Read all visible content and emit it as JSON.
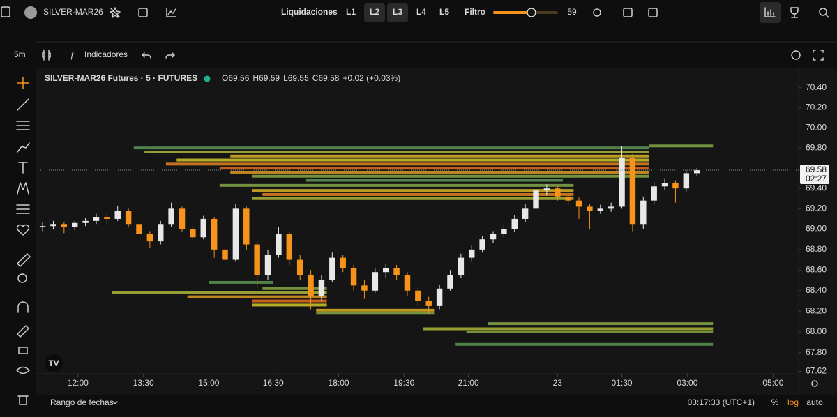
{
  "top_bar": {
    "symbol": "SILVER-MAR26",
    "liquidations": "Liquidaciones",
    "levels": [
      "L1",
      "L2",
      "L3",
      "L4",
      "L5"
    ],
    "filter": "Filtro",
    "filter_value": 59
  },
  "toolbar": {
    "interval": "5m",
    "indicators": "Indicadores"
  },
  "chart_data": {
    "type": "candlestick",
    "title": "SILVER-MAR26 Futures · 5 · FUTURES",
    "legend_values": [
      "O69.56",
      "H69.59",
      "L69.55",
      "C69.58",
      "+0.02 (+0.03%)"
    ],
    "up_color": "#e8e8e8",
    "down_color": "#f7931a",
    "log_scale": true,
    "ylim": [
      67.57,
      70.51
    ],
    "yticks": [
      {
        "value": 70.4,
        "label": "70.40"
      },
      {
        "value": 70.2,
        "label": "70.20"
      },
      {
        "value": 70,
        "label": "70.00"
      },
      {
        "value": 69.8,
        "label": "69.80"
      },
      {
        "value": 69.4,
        "label": "69.40"
      },
      {
        "value": 69.2,
        "label": "69.20"
      },
      {
        "value": 69,
        "label": "69.00"
      },
      {
        "value": 68.8,
        "label": "68.80"
      },
      {
        "value": 68.6,
        "label": "68.60"
      },
      {
        "value": 68.4,
        "label": "68.40"
      },
      {
        "value": 68.2,
        "label": "68.20"
      },
      {
        "value": 68,
        "label": "68.00"
      },
      {
        "value": 67.8,
        "label": "67.80"
      },
      67.62
    ],
    "xlim": [
      -0.2,
      69.7
    ],
    "xticks": [
      {
        "value": 3.3,
        "label": "12:00"
      },
      {
        "value": 9.4,
        "label": "13:30"
      },
      {
        "value": 15.5,
        "label": "15:00"
      },
      {
        "value": 21.5,
        "label": "16:30"
      },
      {
        "value": 27.6,
        "label": "18:00"
      },
      {
        "value": 33.7,
        "label": "19:30"
      },
      {
        "value": 39.7,
        "label": "21:00"
      },
      {
        "value": 48.0,
        "label": "23"
      },
      {
        "value": 54.0,
        "label": "01:30"
      },
      {
        "value": 60.1,
        "label": "03:00"
      },
      {
        "value": 68.1,
        "label": "05:00"
      }
    ],
    "last_price": 69.58,
    "countdown": "02:27",
    "candles": [
      [
        69.02,
        69.07,
        68.98,
        69.03
      ],
      [
        69.03,
        69.08,
        69.0,
        69.05
      ],
      [
        69.05,
        69.07,
        68.96,
        69.02
      ],
      [
        69.02,
        69.08,
        68.99,
        69.06
      ],
      [
        69.06,
        69.11,
        69.03,
        69.08
      ],
      [
        69.08,
        69.15,
        69.05,
        69.12
      ],
      [
        69.12,
        69.15,
        69.05,
        69.1
      ],
      [
        69.1,
        69.23,
        69.08,
        69.18
      ],
      [
        69.18,
        69.2,
        69.02,
        69.05
      ],
      [
        69.05,
        69.08,
        68.92,
        68.95
      ],
      [
        68.95,
        68.98,
        68.82,
        68.88
      ],
      [
        68.88,
        69.08,
        68.85,
        69.05
      ],
      [
        69.05,
        69.26,
        69.02,
        69.2
      ],
      [
        69.2,
        69.22,
        68.97,
        69.0
      ],
      [
        69.0,
        69.03,
        68.88,
        68.92
      ],
      [
        68.92,
        69.13,
        68.9,
        69.1
      ],
      [
        69.1,
        69.12,
        68.72,
        68.8
      ],
      [
        68.8,
        68.85,
        68.62,
        68.7
      ],
      [
        68.7,
        69.25,
        68.68,
        69.2
      ],
      [
        69.2,
        69.22,
        68.8,
        68.85
      ],
      [
        68.85,
        68.88,
        68.42,
        68.55
      ],
      [
        68.55,
        68.8,
        68.5,
        68.75
      ],
      [
        68.75,
        69.02,
        68.72,
        68.95
      ],
      [
        68.95,
        68.98,
        68.65,
        68.7
      ],
      [
        68.7,
        68.75,
        68.5,
        68.55
      ],
      [
        68.55,
        68.6,
        68.22,
        68.35
      ],
      [
        68.35,
        68.55,
        68.3,
        68.5
      ],
      [
        68.5,
        68.77,
        68.48,
        68.72
      ],
      [
        68.72,
        68.75,
        68.58,
        68.62
      ],
      [
        68.62,
        68.65,
        68.4,
        68.45
      ],
      [
        68.45,
        68.5,
        68.32,
        68.4
      ],
      [
        68.4,
        68.62,
        68.38,
        68.58
      ],
      [
        68.58,
        68.66,
        68.52,
        68.62
      ],
      [
        68.62,
        68.65,
        68.5,
        68.55
      ],
      [
        68.55,
        68.58,
        68.35,
        68.4
      ],
      [
        68.4,
        68.44,
        68.25,
        68.3
      ],
      [
        68.3,
        68.34,
        68.17,
        68.25
      ],
      [
        68.25,
        68.46,
        68.22,
        68.42
      ],
      [
        68.42,
        68.6,
        68.4,
        68.55
      ],
      [
        68.55,
        68.76,
        68.52,
        68.72
      ],
      [
        68.72,
        68.84,
        68.68,
        68.8
      ],
      [
        68.8,
        68.93,
        68.77,
        68.9
      ],
      [
        68.9,
        68.98,
        68.86,
        68.95
      ],
      [
        68.95,
        69.04,
        68.92,
        69.0
      ],
      [
        69.0,
        69.14,
        68.97,
        69.1
      ],
      [
        69.1,
        69.25,
        69.07,
        69.2
      ],
      [
        69.2,
        69.45,
        69.17,
        69.38
      ],
      [
        69.38,
        69.44,
        69.33,
        69.4
      ],
      [
        69.4,
        69.42,
        69.28,
        69.32
      ],
      [
        69.32,
        69.35,
        69.24,
        69.28
      ],
      [
        69.28,
        69.31,
        69.1,
        69.22
      ],
      [
        69.22,
        69.25,
        69.0,
        69.18
      ],
      [
        69.18,
        69.24,
        69.15,
        69.2
      ],
      [
        69.2,
        69.26,
        69.17,
        69.22
      ],
      [
        69.22,
        69.82,
        69.2,
        69.7
      ],
      [
        69.7,
        69.74,
        68.98,
        69.05
      ],
      [
        69.05,
        69.32,
        69.0,
        69.28
      ],
      [
        69.28,
        69.46,
        69.24,
        69.42
      ],
      [
        69.42,
        69.5,
        69.38,
        69.45
      ],
      [
        69.45,
        69.48,
        69.26,
        69.4
      ],
      [
        69.4,
        69.58,
        69.37,
        69.55
      ],
      [
        69.55,
        69.6,
        69.52,
        69.58
      ]
    ],
    "liquidation_levels": [
      {
        "price": 69.8,
        "start": 9,
        "end": 56,
        "intensity": 0.2
      },
      {
        "price": 69.76,
        "start": 10,
        "end": 56,
        "intensity": 0.4
      },
      {
        "price": 69.72,
        "start": 18,
        "end": 56,
        "intensity": 0.6
      },
      {
        "price": 69.68,
        "start": 13,
        "end": 56,
        "intensity": 0.5
      },
      {
        "price": 69.64,
        "start": 12,
        "end": 56,
        "intensity": 0.8
      },
      {
        "price": 69.6,
        "start": 17,
        "end": 56,
        "intensity": 0.9
      },
      {
        "price": 69.56,
        "start": 18,
        "end": 56,
        "intensity": 0.7
      },
      {
        "price": 69.52,
        "start": 20,
        "end": 56,
        "intensity": 0.3
      },
      {
        "price": 69.48,
        "start": 25,
        "end": 48,
        "intensity": 0.2
      },
      {
        "price": 69.43,
        "start": 17,
        "end": 49,
        "intensity": 0.3
      },
      {
        "price": 69.38,
        "start": 20,
        "end": 49,
        "intensity": 0.6
      },
      {
        "price": 69.34,
        "start": 21,
        "end": 49,
        "intensity": 0.8
      },
      {
        "price": 69.3,
        "start": 20,
        "end": 49,
        "intensity": 0.4
      },
      {
        "price": 69.82,
        "start": 57,
        "end": 62,
        "intensity": 0.3
      },
      {
        "price": 68.48,
        "start": 16,
        "end": 21,
        "intensity": 0.2
      },
      {
        "price": 68.42,
        "start": 21,
        "end": 26,
        "intensity": 0.3
      },
      {
        "price": 68.38,
        "start": 7,
        "end": 26,
        "intensity": 0.4
      },
      {
        "price": 68.34,
        "start": 14,
        "end": 26,
        "intensity": 0.7
      },
      {
        "price": 68.3,
        "start": 20,
        "end": 26,
        "intensity": 0.9
      },
      {
        "price": 68.26,
        "start": 20,
        "end": 26,
        "intensity": 0.5
      },
      {
        "price": 68.21,
        "start": 26,
        "end": 36,
        "intensity": 0.6
      },
      {
        "price": 68.18,
        "start": 26,
        "end": 36,
        "intensity": 0.3
      },
      {
        "price": 68.08,
        "start": 42,
        "end": 62,
        "intensity": 0.3
      },
      {
        "price": 68.03,
        "start": 36,
        "end": 62,
        "intensity": 0.4
      },
      {
        "price": 68.0,
        "start": 40,
        "end": 62,
        "intensity": 0.3
      },
      {
        "price": 67.88,
        "start": 39,
        "end": 62,
        "intensity": 0.2
      }
    ]
  },
  "bottom_bar": {
    "range": "Rango de fechas",
    "clock": "03:17:33 (UTC+1)",
    "percent": "%",
    "log": "log",
    "auto": "auto"
  }
}
